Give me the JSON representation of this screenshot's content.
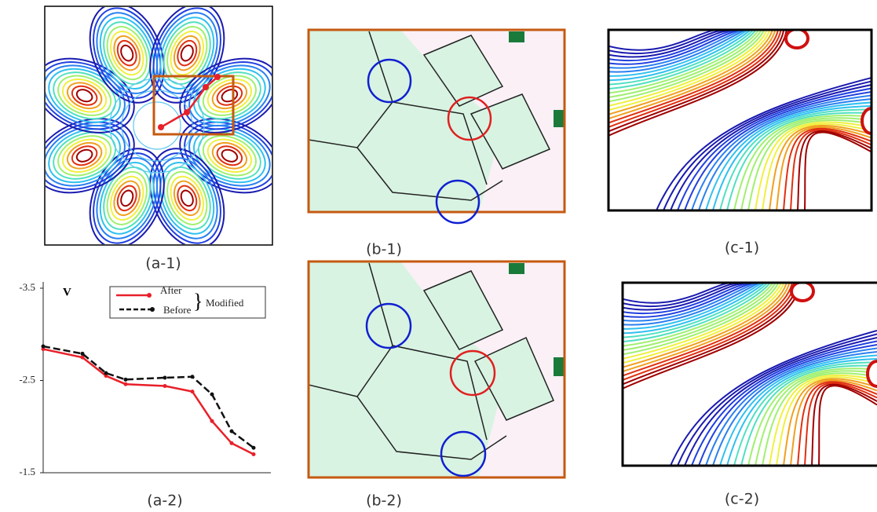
{
  "captions": [
    "(a-1)",
    "(b-1)",
    "(c-1)",
    "(a-2)",
    "(b-2)",
    "(c-2)"
  ],
  "chart_data": {
    "type": "line",
    "y_label": "V",
    "legend_note": "Modified",
    "legend": "upper right",
    "x": [
      0,
      50,
      80,
      105,
      155,
      190,
      215,
      240,
      268
    ],
    "xlim": [
      0,
      290
    ],
    "ylim": [
      -1.5,
      -3.5
    ],
    "yticks": [
      -3.5,
      -2.5,
      -1.5
    ],
    "series": [
      {
        "name": "After",
        "color": "#e8202a",
        "dashed": false,
        "values": [
          -2.84,
          -2.75,
          -2.55,
          -2.46,
          -2.44,
          -2.38,
          -2.06,
          -1.82,
          -1.7
        ]
      },
      {
        "name": "Before",
        "color": "#111111",
        "dashed": true,
        "values": [
          -2.87,
          -2.79,
          -2.58,
          -2.51,
          -2.53,
          -2.54,
          -2.35,
          -1.95,
          -1.77
        ]
      }
    ]
  }
}
